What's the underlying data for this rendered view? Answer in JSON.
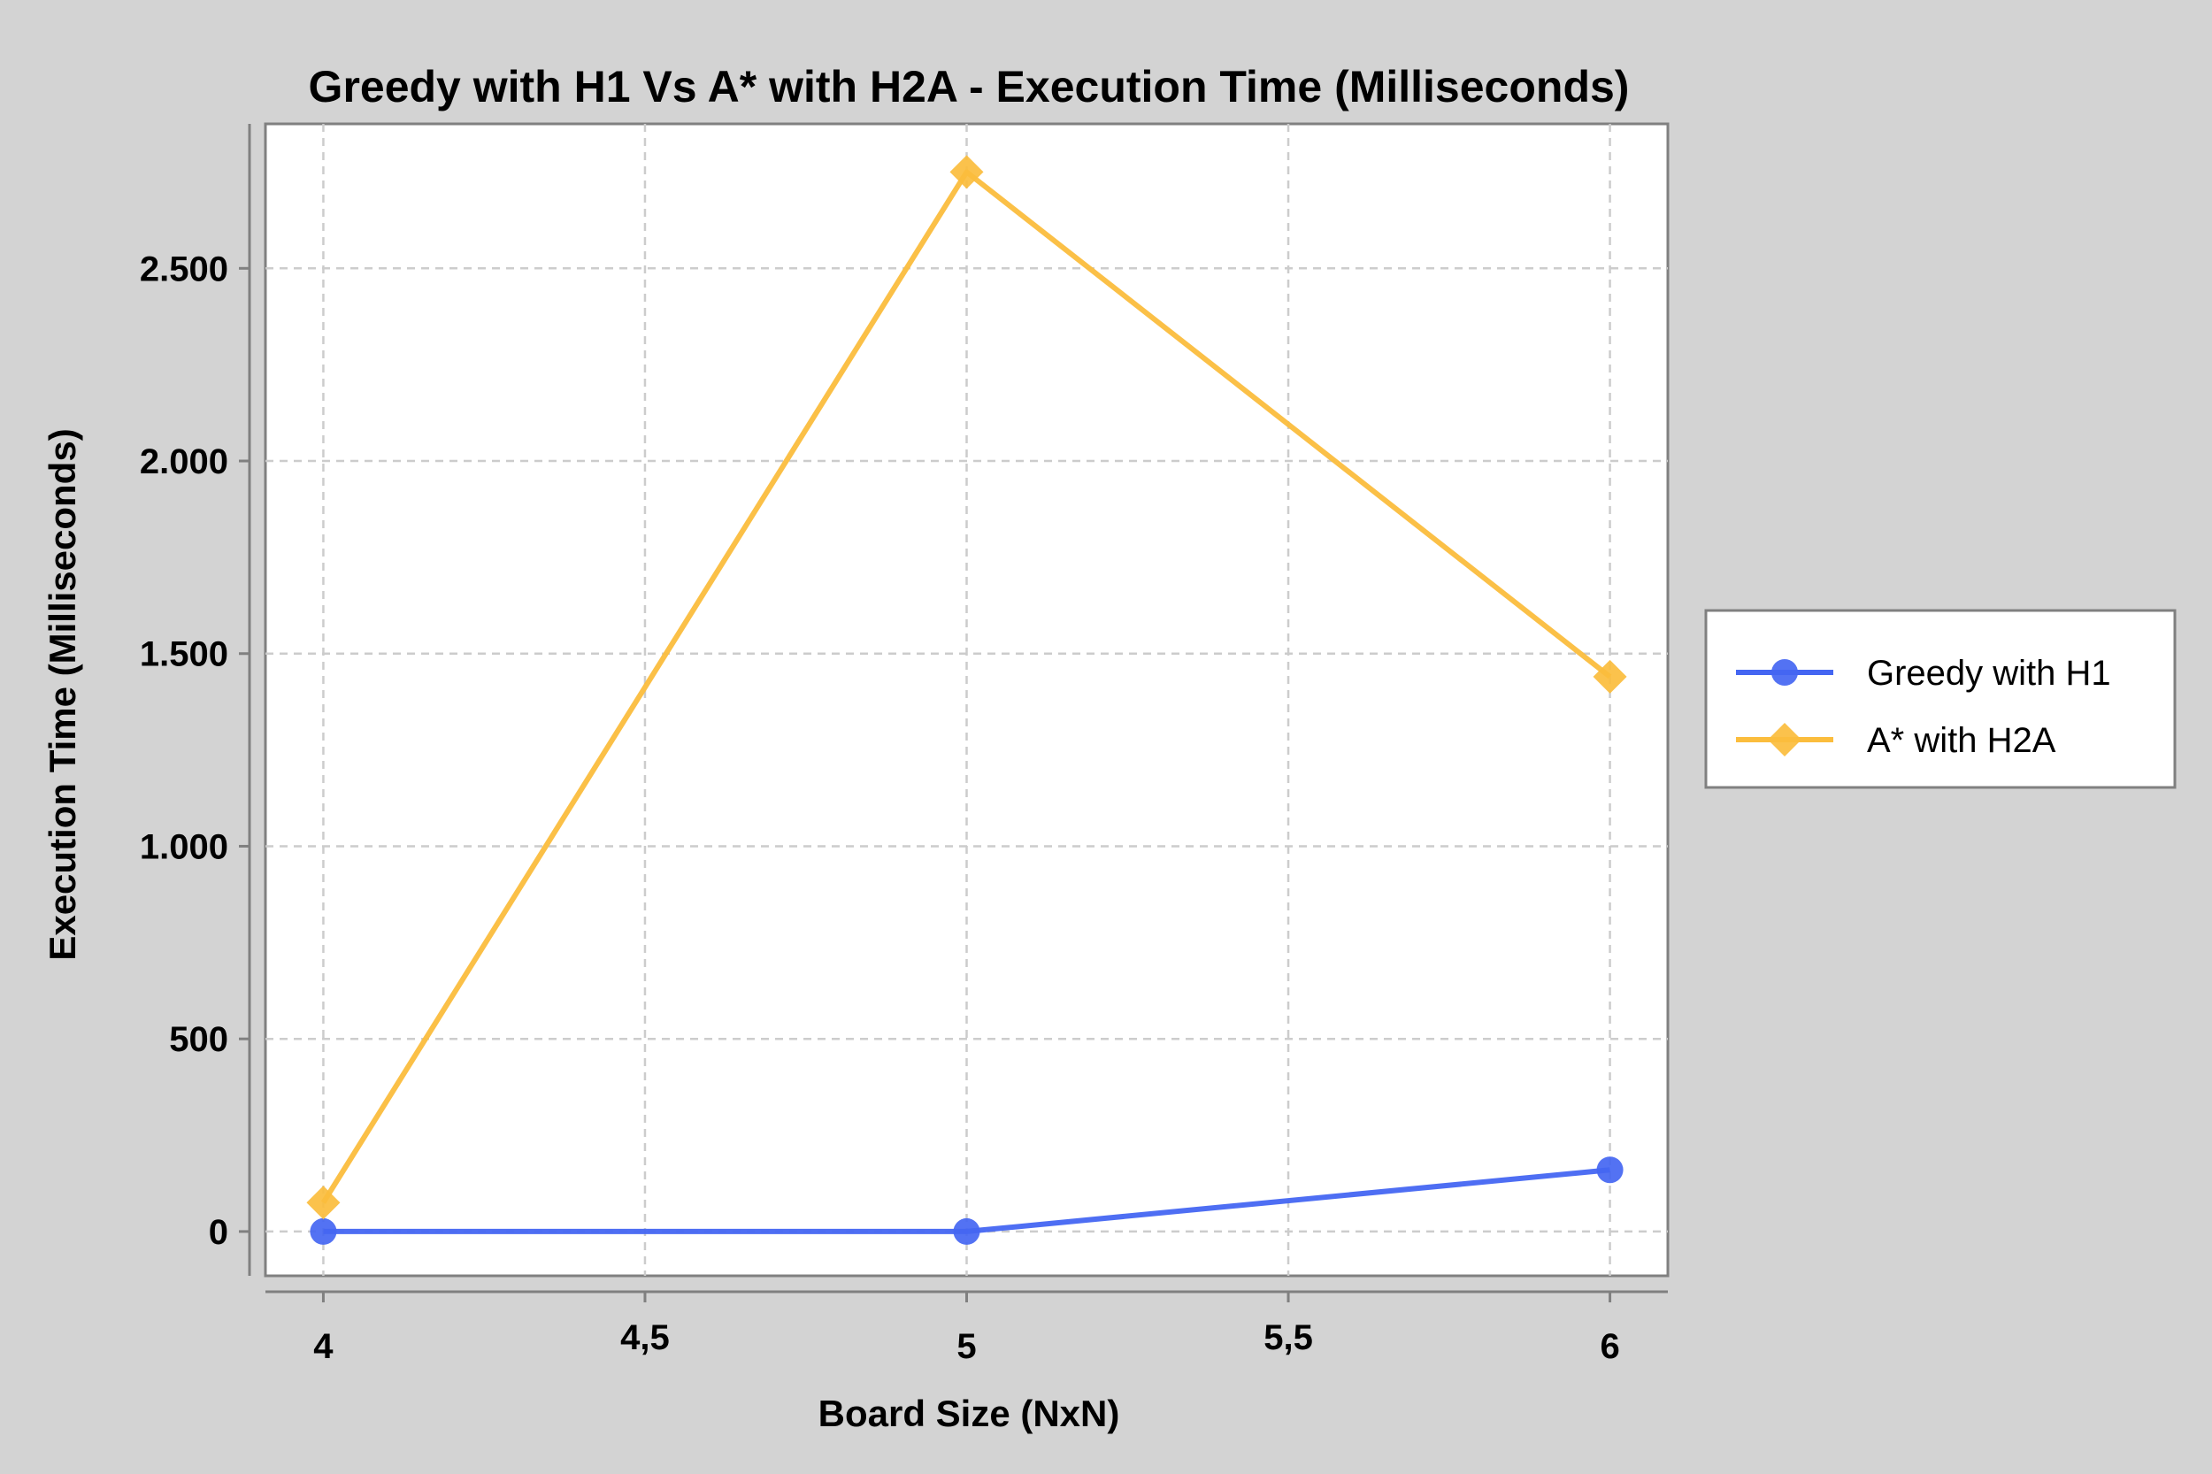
{
  "chart_data": {
    "type": "line",
    "title": "Greedy with H1 Vs A* with H2A - Execution Time (Milliseconds)",
    "xlabel": "Board Size (NxN)",
    "ylabel": "Execution Time (Milliseconds)",
    "x": [
      4,
      5,
      6
    ],
    "xlim": [
      3.91,
      6.09
    ],
    "ylim": [
      -115,
      2875
    ],
    "xticks": [
      4,
      4.5,
      5,
      5.5,
      6
    ],
    "xtick_labels": [
      "4",
      "4,5",
      "5",
      "5,5",
      "6"
    ],
    "yticks": [
      0,
      500,
      1000,
      1500,
      2000,
      2500
    ],
    "ytick_labels": [
      "0",
      "500",
      "1.000",
      "1.500",
      "2.000",
      "2.500"
    ],
    "grid": true,
    "legend_position": "right",
    "series": [
      {
        "name": "Greedy with H1",
        "values": [
          0,
          0,
          160
        ],
        "color": "#4466f2",
        "marker": "circle"
      },
      {
        "name": "A* with H2A",
        "values": [
          75,
          2750,
          1440
        ],
        "color": "#fbbd3d",
        "marker": "diamond"
      }
    ]
  }
}
